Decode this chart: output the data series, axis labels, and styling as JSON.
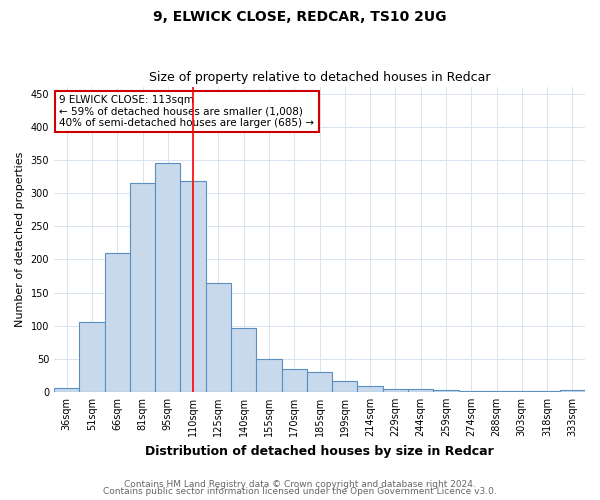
{
  "title_line1": "9, ELWICK CLOSE, REDCAR, TS10 2UG",
  "title_line2": "Size of property relative to detached houses in Redcar",
  "xlabel": "Distribution of detached houses by size in Redcar",
  "ylabel": "Number of detached properties",
  "categories": [
    "36sqm",
    "51sqm",
    "66sqm",
    "81sqm",
    "95sqm",
    "110sqm",
    "125sqm",
    "140sqm",
    "155sqm",
    "170sqm",
    "185sqm",
    "199sqm",
    "214sqm",
    "229sqm",
    "244sqm",
    "259sqm",
    "274sqm",
    "288sqm",
    "303sqm",
    "318sqm",
    "333sqm"
  ],
  "values": [
    6,
    105,
    210,
    315,
    345,
    318,
    165,
    97,
    50,
    35,
    30,
    16,
    9,
    5,
    4,
    3,
    1,
    1,
    1,
    1,
    3
  ],
  "bar_color": "#c9d9ec",
  "bar_edge_color": "#5a8fc0",
  "bar_width": 1.0,
  "red_line_x": 5.0,
  "annotation_text": "9 ELWICK CLOSE: 113sqm\n← 59% of detached houses are smaller (1,008)\n40% of semi-detached houses are larger (685) →",
  "annotation_box_color": "#ffffff",
  "annotation_box_edge_color": "#cc0000",
  "ylim": [
    0,
    460
  ],
  "yticks": [
    0,
    50,
    100,
    150,
    200,
    250,
    300,
    350,
    400,
    450
  ],
  "grid_color": "#d8e4f0",
  "background_color": "#ffffff",
  "footnote_line1": "Contains HM Land Registry data © Crown copyright and database right 2024.",
  "footnote_line2": "Contains public sector information licensed under the Open Government Licence v3.0.",
  "title_fontsize": 10,
  "subtitle_fontsize": 9,
  "xlabel_fontsize": 9,
  "ylabel_fontsize": 8,
  "tick_fontsize": 7,
  "annotation_fontsize": 7.5,
  "footnote_fontsize": 6.5
}
